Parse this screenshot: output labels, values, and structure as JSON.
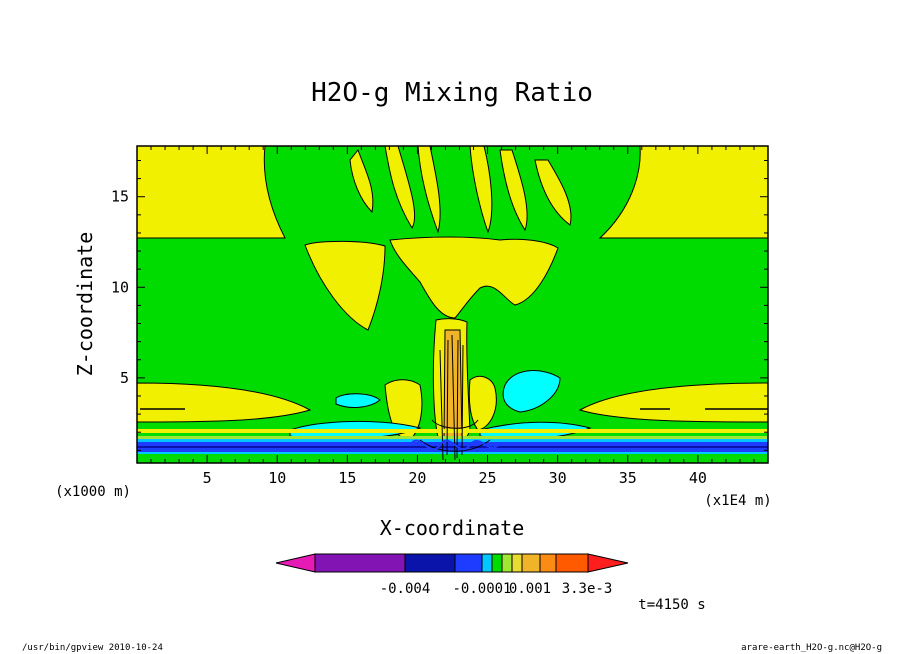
{
  "chart_data": {
    "type": "heatmap",
    "title": "H2O-g Mixing Ratio",
    "xlabel": "X-coordinate",
    "ylabel": "Z-coordinate",
    "x_unit": "(x1E4 m)",
    "y_unit": "(x1000 m)",
    "xlim": [
      0,
      45
    ],
    "ylim": [
      0.3,
      17.8
    ],
    "x_ticks": [
      "5",
      "10",
      "15",
      "20",
      "25",
      "30",
      "35",
      "40"
    ],
    "y_ticks": [
      "5",
      "10",
      "15"
    ],
    "colorbar": {
      "labels": [
        "-0.004",
        "-0.0001",
        "0.001",
        "3.3e-3"
      ],
      "colors": [
        "#e61ab4",
        "#8214b4",
        "#0a14aa",
        "#1e3cff",
        "#00c8ff",
        "#00dc00",
        "#a0e632",
        "#e6dc32",
        "#f0b428",
        "#fa8c14",
        "#ff5a00",
        "#ff1e1e"
      ]
    },
    "time_label": "t=4150 s",
    "footer_left": "/usr/bin/gpview  2010-10-24",
    "footer_right": "arare-earth_H2O-g.nc@H2O-g"
  }
}
